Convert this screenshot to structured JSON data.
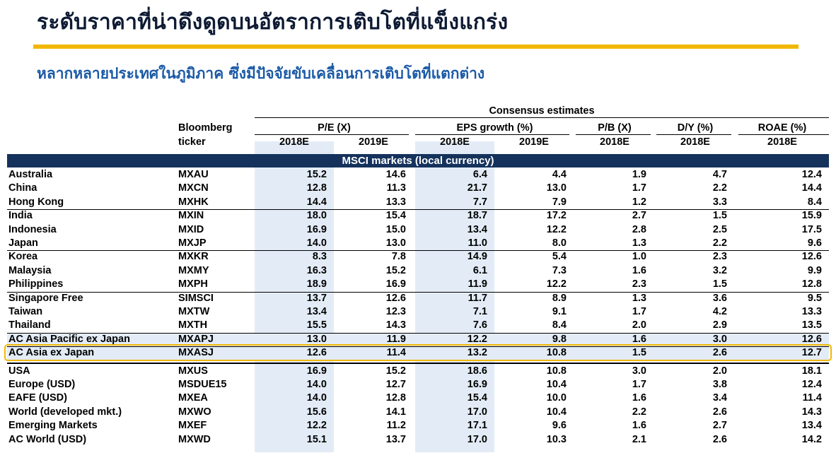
{
  "title": "ระดับราคาที่น่าดึงดูดบนอัตราการเติบโตที่แข็งแกร่ง",
  "subtitle": "หลากหลายประเทศในภูมิภาค ซึ่งมีปัจจัยขับเคลื่อนการเติบโตที่แตกต่าง",
  "table": {
    "consensus_header": "Consensus estimates",
    "ticker_header_1": "Bloomberg",
    "ticker_header_2": "ticker",
    "groups": [
      "P/E (X)",
      "EPS growth (%)",
      "P/B (X)",
      "D/Y (%)",
      "ROAE (%)"
    ],
    "years": [
      "2018E",
      "2019E",
      "2018E",
      "2019E",
      "2018E",
      "2018E",
      "2018E"
    ],
    "section_title": "MSCI markets (local currency)",
    "rows": [
      {
        "name": "Australia",
        "ticker": "MXAU",
        "values": [
          "15.2",
          "14.6",
          "6.4",
          "4.4",
          "1.9",
          "4.7",
          "12.4"
        ]
      },
      {
        "name": "China",
        "ticker": "MXCN",
        "values": [
          "12.8",
          "11.3",
          "21.7",
          "13.0",
          "1.7",
          "2.2",
          "14.4"
        ]
      },
      {
        "name": "Hong Kong",
        "ticker": "MXHK",
        "values": [
          "14.4",
          "13.3",
          "7.7",
          "7.9",
          "1.2",
          "3.3",
          "8.4"
        ]
      },
      {
        "name": "India",
        "ticker": "MXIN",
        "values": [
          "18.0",
          "15.4",
          "18.7",
          "17.2",
          "2.7",
          "1.5",
          "15.9"
        ]
      },
      {
        "name": "Indonesia",
        "ticker": "MXID",
        "values": [
          "16.9",
          "15.0",
          "13.4",
          "12.2",
          "2.8",
          "2.5",
          "17.5"
        ]
      },
      {
        "name": "Japan",
        "ticker": "MXJP",
        "values": [
          "14.0",
          "13.0",
          "11.0",
          "8.0",
          "1.3",
          "2.2",
          "9.6"
        ]
      },
      {
        "name": "Korea",
        "ticker": "MXKR",
        "values": [
          "8.3",
          "7.8",
          "14.9",
          "5.4",
          "1.0",
          "2.3",
          "12.6"
        ]
      },
      {
        "name": "Malaysia",
        "ticker": "MXMY",
        "values": [
          "16.3",
          "15.2",
          "6.1",
          "7.3",
          "1.6",
          "3.2",
          "9.9"
        ]
      },
      {
        "name": "Philippines",
        "ticker": "MXPH",
        "values": [
          "18.9",
          "16.9",
          "11.9",
          "12.2",
          "2.3",
          "1.5",
          "12.8"
        ]
      },
      {
        "name": "Singapore Free",
        "ticker": "SIMSCI",
        "values": [
          "13.7",
          "12.6",
          "11.7",
          "8.9",
          "1.3",
          "3.6",
          "9.5"
        ]
      },
      {
        "name": "Taiwan",
        "ticker": "MXTW",
        "values": [
          "13.4",
          "12.3",
          "7.1",
          "9.1",
          "1.7",
          "4.2",
          "13.3"
        ]
      },
      {
        "name": "Thailand",
        "ticker": "MXTH",
        "values": [
          "15.5",
          "14.3",
          "7.6",
          "8.4",
          "2.0",
          "2.9",
          "13.5"
        ]
      },
      {
        "name": "AC Asia Pacific ex Japan",
        "ticker": "MXAPJ",
        "values": [
          "13.0",
          "11.9",
          "12.2",
          "9.8",
          "1.6",
          "3.0",
          "12.6"
        ]
      },
      {
        "name": "AC Asia ex Japan",
        "ticker": "MXASJ",
        "values": [
          "12.6",
          "11.4",
          "13.2",
          "10.8",
          "1.5",
          "2.6",
          "12.7"
        ]
      },
      {
        "name": "USA",
        "ticker": "MXUS",
        "values": [
          "16.9",
          "15.2",
          "18.6",
          "10.8",
          "3.0",
          "2.0",
          "18.1"
        ]
      },
      {
        "name": "Europe (USD)",
        "ticker": "MSDUE15",
        "values": [
          "14.0",
          "12.7",
          "16.9",
          "10.4",
          "1.7",
          "3.8",
          "12.4"
        ]
      },
      {
        "name": "EAFE (USD)",
        "ticker": "MXEA",
        "values": [
          "14.0",
          "12.8",
          "15.4",
          "10.0",
          "1.6",
          "3.4",
          "11.4"
        ]
      },
      {
        "name": "World (developed mkt.)",
        "ticker": "MXWO",
        "values": [
          "15.6",
          "14.1",
          "17.0",
          "10.4",
          "2.2",
          "2.6",
          "14.3"
        ]
      },
      {
        "name": "Emerging Markets",
        "ticker": "MXEF",
        "values": [
          "12.2",
          "11.2",
          "17.1",
          "9.6",
          "1.6",
          "2.7",
          "13.4"
        ]
      },
      {
        "name": "AC World (USD)",
        "ticker": "MXWD",
        "values": [
          "15.1",
          "13.7",
          "17.0",
          "10.3",
          "2.1",
          "2.6",
          "14.2"
        ]
      }
    ]
  },
  "colors": {
    "title": "#0d1a33",
    "subtitle": "#1b5aa6",
    "accent_rule": "#f2b704",
    "section_bar": "#14325c",
    "column_shade": "#e3ecf6"
  }
}
